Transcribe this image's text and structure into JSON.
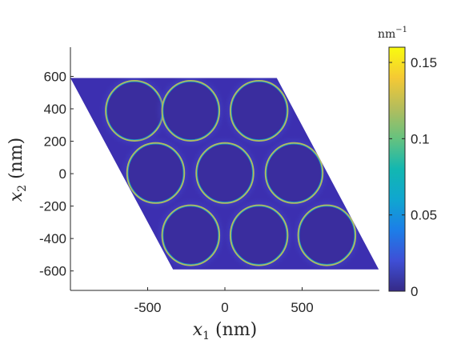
{
  "chart_data": {
    "type": "heatmap",
    "title": "",
    "xlabel_var": "x",
    "xlabel_sub": "1",
    "xlabel_unit": " (nm)",
    "ylabel_var": "x",
    "ylabel_sub": "2",
    "ylabel_unit": " (nm)",
    "xlim": [
      -1000,
      1000
    ],
    "ylim": [
      -720,
      780
    ],
    "x_ticks": [
      -500,
      0,
      500
    ],
    "x_tick_labels": [
      "-500",
      "0",
      "500"
    ],
    "y_ticks": [
      600,
      400,
      200,
      0,
      -200,
      -400,
      -600
    ],
    "y_tick_labels": [
      "600",
      "400",
      "200",
      "0",
      "-200",
      "-400",
      "-600"
    ],
    "grid": false,
    "colormap": "parula",
    "colormap_stops": [
      "#352a87",
      "#3f4fd6",
      "#1c7ee8",
      "#10a6d0",
      "#12b7b1",
      "#65c27f",
      "#b4bd5c",
      "#f5c934",
      "#f9fb0e"
    ],
    "background_color": "#3c2fb0",
    "hole_color": "#3a2d9e",
    "colorbar": {
      "unit_base": "nm",
      "unit_exp": "−1",
      "range": [
        0,
        0.16
      ],
      "ticks": [
        0,
        0.05,
        0.1,
        0.15
      ],
      "tick_labels": [
        "0",
        "0.05",
        "0.1",
        "0.15"
      ]
    },
    "domain": {
      "shape": "parallelogram",
      "vertices": [
        [
          -1000,
          590
        ],
        [
          336,
          590
        ],
        [
          996,
          -590
        ],
        [
          -336,
          -590
        ]
      ]
    },
    "circles": {
      "radius": 185,
      "centers": [
        [
          -586,
          388
        ],
        [
          -221,
          388
        ],
        [
          221,
          388
        ],
        [
          -448,
          4
        ],
        [
          0,
          4
        ],
        [
          448,
          4
        ],
        [
          -221,
          -380
        ],
        [
          221,
          -380
        ],
        [
          660,
          -380
        ]
      ],
      "edge_value_range": [
        0.05,
        0.12
      ],
      "halo_value": 0.02
    }
  }
}
